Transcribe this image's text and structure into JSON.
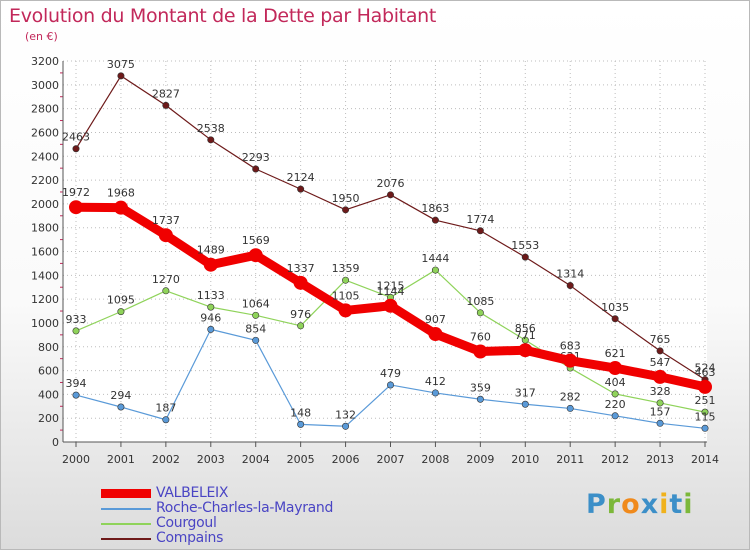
{
  "chart_data": {
    "type": "line",
    "title": "Evolution du Montant de la Dette par Habitant",
    "subtitle": "(en €)",
    "xlabel": "",
    "ylabel": "",
    "x": [
      "2000",
      "2001",
      "2002",
      "2003",
      "2004",
      "2005",
      "2006",
      "2007",
      "2008",
      "2009",
      "2010",
      "2011",
      "2012",
      "2013",
      "2014"
    ],
    "yticks": [
      "0",
      "200",
      "400",
      "600",
      "800",
      "1000",
      "1200",
      "1400",
      "1600",
      "1800",
      "2000",
      "2200",
      "2400",
      "2600",
      "2800",
      "3000",
      "3200"
    ],
    "ylim": [
      0,
      3200
    ],
    "grid": true,
    "legend_position": "bottom-left",
    "series": [
      {
        "name": "Compains",
        "color": "#6e1a1a",
        "values": [
          2463,
          3075,
          2827,
          2538,
          2293,
          2124,
          1950,
          2076,
          1863,
          1774,
          1553,
          1314,
          1035,
          765,
          524
        ],
        "labels": [
          "2463",
          "3075",
          "2827",
          "2538",
          "2293",
          "2124",
          "1950",
          "2076",
          "1863",
          "1774",
          "1553",
          "1314",
          "1035",
          "765",
          "524"
        ]
      },
      {
        "name": "Courgoul",
        "color": "#8fd35a",
        "values": [
          933,
          1095,
          1270,
          1133,
          1064,
          976,
          1359,
          1215,
          1444,
          1085,
          856,
          621,
          404,
          328,
          251
        ],
        "labels": [
          "933",
          "1095",
          "1270",
          "1133",
          "1064",
          "976",
          "1359",
          "1215",
          "1444",
          "1085",
          "856",
          "621",
          "404",
          "328",
          "251"
        ]
      },
      {
        "name": "Roche-Charles-la-Mayrand",
        "color": "#5a9ad8",
        "values": [
          394,
          294,
          187,
          946,
          854,
          148,
          132,
          479,
          412,
          359,
          317,
          282,
          220,
          157,
          115
        ],
        "labels": [
          "394",
          "294",
          "187",
          "946",
          "854",
          "148",
          "132",
          "479",
          "412",
          "359",
          "317",
          "282",
          "220",
          "157",
          "115"
        ]
      },
      {
        "name": "VALBELEIX",
        "color": "#f00000",
        "values": [
          1972,
          1968,
          1737,
          1489,
          1569,
          1337,
          1105,
          1144,
          907,
          760,
          771,
          683,
          621,
          547,
          463
        ],
        "labels": [
          "1972",
          "1968",
          "1737",
          "1489",
          "1569",
          "1337",
          "1105",
          "1144",
          "907",
          "760",
          "771",
          "683",
          "621",
          "547",
          "463"
        ]
      }
    ]
  },
  "legend": [
    {
      "name": "VALBELEIX",
      "color": "#f00000"
    },
    {
      "name": "Roche-Charles-la-Mayrand",
      "color": "#5a9ad8"
    },
    {
      "name": "Courgoul",
      "color": "#8fd35a"
    },
    {
      "name": "Compains",
      "color": "#6e1a1a"
    }
  ],
  "logo": {
    "p": "P",
    "r": "r",
    "o": "o",
    "x": "x",
    "i": "i",
    "t": "t",
    "i2": "i"
  }
}
